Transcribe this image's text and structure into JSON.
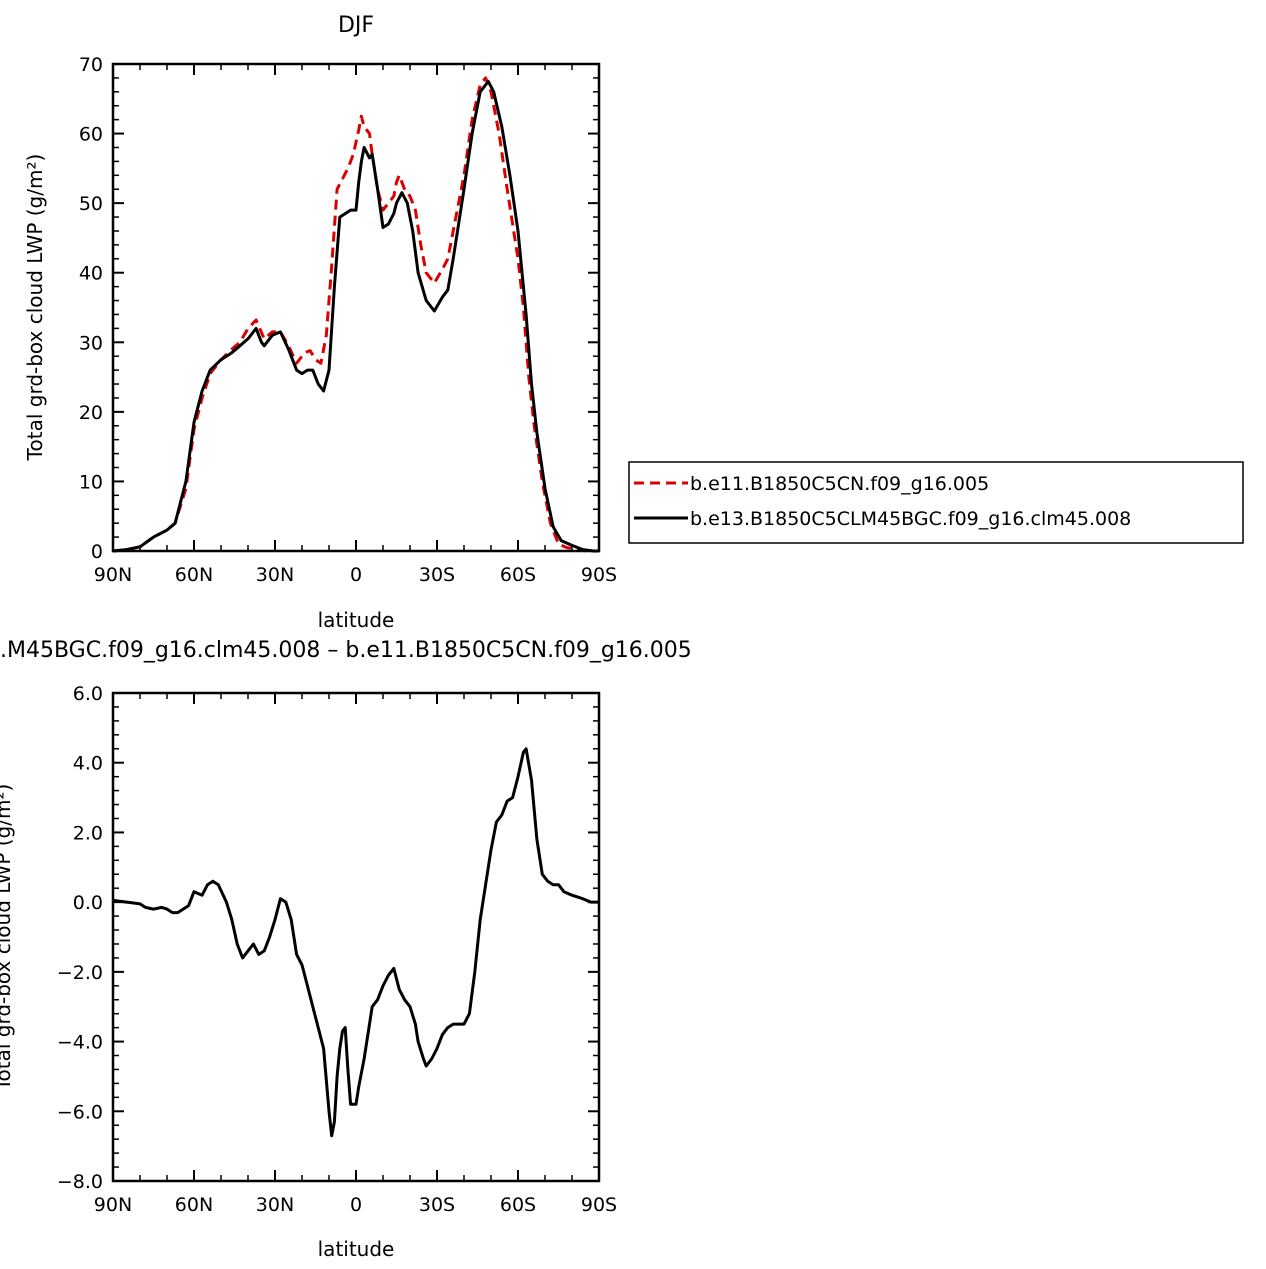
{
  "chart_data": [
    {
      "type": "line",
      "title": "DJF",
      "xlabel": "latitude",
      "ylabel": "Total grd-box cloud LWP (g/m²)",
      "xlim": [
        -90,
        90
      ],
      "ylim": [
        0,
        70
      ],
      "x_ticks": [
        -90,
        -60,
        -30,
        0,
        30,
        60,
        90
      ],
      "x_tick_labels": [
        "90N",
        "60N",
        "30N",
        "0",
        "30S",
        "60S",
        "90S"
      ],
      "y_ticks": [
        0,
        10,
        20,
        30,
        40,
        50,
        60,
        70
      ],
      "y_tick_labels": [
        "0",
        "10",
        "20",
        "30",
        "40",
        "50",
        "60",
        "70"
      ],
      "legend": "right",
      "series": [
        {
          "name": "b.e11.B1850C5CN.f09_g16.005",
          "color": "#dd0000",
          "style": "dashed",
          "points": [
            [
              -90,
              0
            ],
            [
              -85,
              0.2
            ],
            [
              -80,
              0.6
            ],
            [
              -75,
              2.0
            ],
            [
              -70,
              3.0
            ],
            [
              -67,
              4.0
            ],
            [
              -63,
              9.0
            ],
            [
              -60,
              17.5
            ],
            [
              -57,
              22.0
            ],
            [
              -54,
              25.5
            ],
            [
              -50,
              27.5
            ],
            [
              -46,
              29.0
            ],
            [
              -43,
              30.0
            ],
            [
              -40,
              32.0
            ],
            [
              -37,
              33.2
            ],
            [
              -34,
              30.5
            ],
            [
              -31,
              31.5
            ],
            [
              -28,
              31.5
            ],
            [
              -25,
              29.5
            ],
            [
              -22,
              27.0
            ],
            [
              -19,
              28.5
            ],
            [
              -17,
              28.8
            ],
            [
              -15,
              27.5
            ],
            [
              -13,
              27.0
            ],
            [
              -11,
              31.0
            ],
            [
              -9,
              41.0
            ],
            [
              -7,
              52.0
            ],
            [
              -5,
              53.5
            ],
            [
              -3,
              55.0
            ],
            [
              -1,
              57.0
            ],
            [
              1,
              60.5
            ],
            [
              2,
              62.5
            ],
            [
              3,
              61.0
            ],
            [
              5,
              60.0
            ],
            [
              6,
              57.0
            ],
            [
              8,
              52.0
            ],
            [
              10,
              49.0
            ],
            [
              12,
              50.0
            ],
            [
              14,
              51.0
            ],
            [
              15,
              53.0
            ],
            [
              16,
              54.0
            ],
            [
              18,
              52.0
            ],
            [
              20,
              51.0
            ],
            [
              22,
              49.0
            ],
            [
              24,
              44.0
            ],
            [
              26,
              40.0
            ],
            [
              29,
              38.5
            ],
            [
              32,
              40.5
            ],
            [
              34,
              42.0
            ],
            [
              36,
              46.0
            ],
            [
              40,
              54.0
            ],
            [
              43,
              62.0
            ],
            [
              46,
              67.0
            ],
            [
              48,
              68.0
            ],
            [
              50,
              66.0
            ],
            [
              53,
              60.0
            ],
            [
              56,
              52.0
            ],
            [
              60,
              42.0
            ],
            [
              62,
              35.0
            ],
            [
              64,
              25.0
            ],
            [
              66,
              18.0
            ],
            [
              69,
              10.0
            ],
            [
              72,
              4.0
            ],
            [
              75,
              1.0
            ],
            [
              78,
              0.5
            ],
            [
              82,
              0.2
            ],
            [
              86,
              0.0
            ],
            [
              90,
              0.0
            ]
          ]
        },
        {
          "name": "b.e13.B1850C5CLM45BGC.f09_g16.clm45.008",
          "color": "#000000",
          "style": "solid",
          "points": [
            [
              -90,
              0
            ],
            [
              -85,
              0.2
            ],
            [
              -80,
              0.6
            ],
            [
              -75,
              2.0
            ],
            [
              -70,
              3.0
            ],
            [
              -67,
              4.0
            ],
            [
              -63,
              10.0
            ],
            [
              -60,
              18.5
            ],
            [
              -57,
              23.0
            ],
            [
              -54,
              26.0
            ],
            [
              -50,
              27.5
            ],
            [
              -46,
              28.5
            ],
            [
              -43,
              29.5
            ],
            [
              -40,
              30.5
            ],
            [
              -37,
              32.0
            ],
            [
              -35,
              30.0
            ],
            [
              -34,
              29.5
            ],
            [
              -31,
              31.0
            ],
            [
              -28,
              31.5
            ],
            [
              -25,
              29.0
            ],
            [
              -22,
              26.0
            ],
            [
              -20,
              25.5
            ],
            [
              -18,
              26.0
            ],
            [
              -16,
              26.0
            ],
            [
              -14,
              24.0
            ],
            [
              -12,
              23.0
            ],
            [
              -10,
              26.0
            ],
            [
              -8,
              38.0
            ],
            [
              -6,
              48.0
            ],
            [
              -4,
              48.5
            ],
            [
              -2,
              49.0
            ],
            [
              0,
              49.0
            ],
            [
              1,
              53.0
            ],
            [
              2,
              56.0
            ],
            [
              3,
              58.0
            ],
            [
              5,
              56.5
            ],
            [
              6,
              57.0
            ],
            [
              8,
              52.0
            ],
            [
              10,
              46.5
            ],
            [
              12,
              47.0
            ],
            [
              14,
              48.5
            ],
            [
              15,
              50.0
            ],
            [
              17,
              51.5
            ],
            [
              19,
              50.0
            ],
            [
              21,
              46.0
            ],
            [
              23,
              40.0
            ],
            [
              26,
              36.0
            ],
            [
              29,
              34.5
            ],
            [
              32,
              36.5
            ],
            [
              34,
              37.5
            ],
            [
              36,
              42.0
            ],
            [
              40,
              52.0
            ],
            [
              43,
              60.0
            ],
            [
              46,
              66.0
            ],
            [
              49,
              67.5
            ],
            [
              51,
              66.0
            ],
            [
              54,
              61.0
            ],
            [
              57,
              54.0
            ],
            [
              60,
              46.0
            ],
            [
              63,
              34.0
            ],
            [
              65,
              24.0
            ],
            [
              67,
              17.0
            ],
            [
              70,
              9.0
            ],
            [
              73,
              3.5
            ],
            [
              76,
              1.5
            ],
            [
              80,
              0.8
            ],
            [
              84,
              0.2
            ],
            [
              88,
              0.0
            ],
            [
              90,
              0.0
            ]
          ]
        }
      ]
    },
    {
      "type": "line",
      "title": ".M45BGC.f09_g16.clm45.008 – b.e11.B1850C5CN.f09_g16.005",
      "xlabel": "latitude",
      "ylabel": "Total grd-box cloud LWP (g/m²)",
      "xlim": [
        -90,
        90
      ],
      "ylim": [
        -8,
        6
      ],
      "x_ticks": [
        -90,
        -60,
        -30,
        0,
        30,
        60,
        90
      ],
      "x_tick_labels": [
        "90N",
        "60N",
        "30N",
        "0",
        "30S",
        "60S",
        "90S"
      ],
      "y_ticks": [
        -8,
        -6,
        -4,
        -2,
        0,
        2,
        4,
        6
      ],
      "y_tick_labels": [
        "−8.0",
        "−6.0",
        "−4.0",
        "−2.0",
        "0.0",
        "2.0",
        "4.0",
        "6.0"
      ],
      "series": [
        {
          "name": "",
          "color": "#000000",
          "style": "solid",
          "points": [
            [
              -90,
              0.05
            ],
            [
              -85,
              0
            ],
            [
              -80,
              -0.05
            ],
            [
              -78,
              -0.15
            ],
            [
              -75,
              -0.2
            ],
            [
              -72,
              -0.15
            ],
            [
              -70,
              -0.2
            ],
            [
              -68,
              -0.3
            ],
            [
              -66,
              -0.3
            ],
            [
              -64,
              -0.2
            ],
            [
              -62,
              -0.1
            ],
            [
              -60,
              0.3
            ],
            [
              -57,
              0.2
            ],
            [
              -55,
              0.5
            ],
            [
              -53,
              0.6
            ],
            [
              -51,
              0.5
            ],
            [
              -48,
              0
            ],
            [
              -46,
              -0.5
            ],
            [
              -44,
              -1.2
            ],
            [
              -42,
              -1.6
            ],
            [
              -40,
              -1.4
            ],
            [
              -38,
              -1.2
            ],
            [
              -36,
              -1.5
            ],
            [
              -34,
              -1.4
            ],
            [
              -32,
              -1.0
            ],
            [
              -30,
              -0.5
            ],
            [
              -28,
              0.1
            ],
            [
              -26,
              0.0
            ],
            [
              -24,
              -0.5
            ],
            [
              -22,
              -1.5
            ],
            [
              -20,
              -1.8
            ],
            [
              -18,
              -2.4
            ],
            [
              -16,
              -3.0
            ],
            [
              -14,
              -3.6
            ],
            [
              -12,
              -4.2
            ],
            [
              -10,
              -6.0
            ],
            [
              -9,
              -6.7
            ],
            [
              -8,
              -6.3
            ],
            [
              -7,
              -5.0
            ],
            [
              -6,
              -4.2
            ],
            [
              -5,
              -3.7
            ],
            [
              -4,
              -3.6
            ],
            [
              -3,
              -4.8
            ],
            [
              -2,
              -5.8
            ],
            [
              0,
              -5.8
            ],
            [
              1,
              -5.3
            ],
            [
              3,
              -4.5
            ],
            [
              5,
              -3.5
            ],
            [
              6,
              -3.0
            ],
            [
              8,
              -2.8
            ],
            [
              10,
              -2.4
            ],
            [
              12,
              -2.1
            ],
            [
              14,
              -1.9
            ],
            [
              16,
              -2.5
            ],
            [
              18,
              -2.8
            ],
            [
              20,
              -3.0
            ],
            [
              22,
              -3.5
            ],
            [
              23,
              -4.0
            ],
            [
              25,
              -4.5
            ],
            [
              26,
              -4.7
            ],
            [
              28,
              -4.5
            ],
            [
              30,
              -4.2
            ],
            [
              32,
              -3.8
            ],
            [
              34,
              -3.6
            ],
            [
              36,
              -3.5
            ],
            [
              38,
              -3.5
            ],
            [
              40,
              -3.5
            ],
            [
              42,
              -3.2
            ],
            [
              44,
              -2.0
            ],
            [
              46,
              -0.5
            ],
            [
              48,
              0.5
            ],
            [
              50,
              1.5
            ],
            [
              52,
              2.3
            ],
            [
              54,
              2.5
            ],
            [
              56,
              2.9
            ],
            [
              58,
              3.0
            ],
            [
              60,
              3.6
            ],
            [
              62,
              4.3
            ],
            [
              63,
              4.4
            ],
            [
              65,
              3.5
            ],
            [
              67,
              1.8
            ],
            [
              69,
              0.8
            ],
            [
              71,
              0.6
            ],
            [
              73,
              0.5
            ],
            [
              75,
              0.5
            ],
            [
              77,
              0.3
            ],
            [
              80,
              0.2
            ],
            [
              84,
              0.1
            ],
            [
              87,
              0
            ],
            [
              90,
              0
            ]
          ]
        }
      ]
    }
  ]
}
